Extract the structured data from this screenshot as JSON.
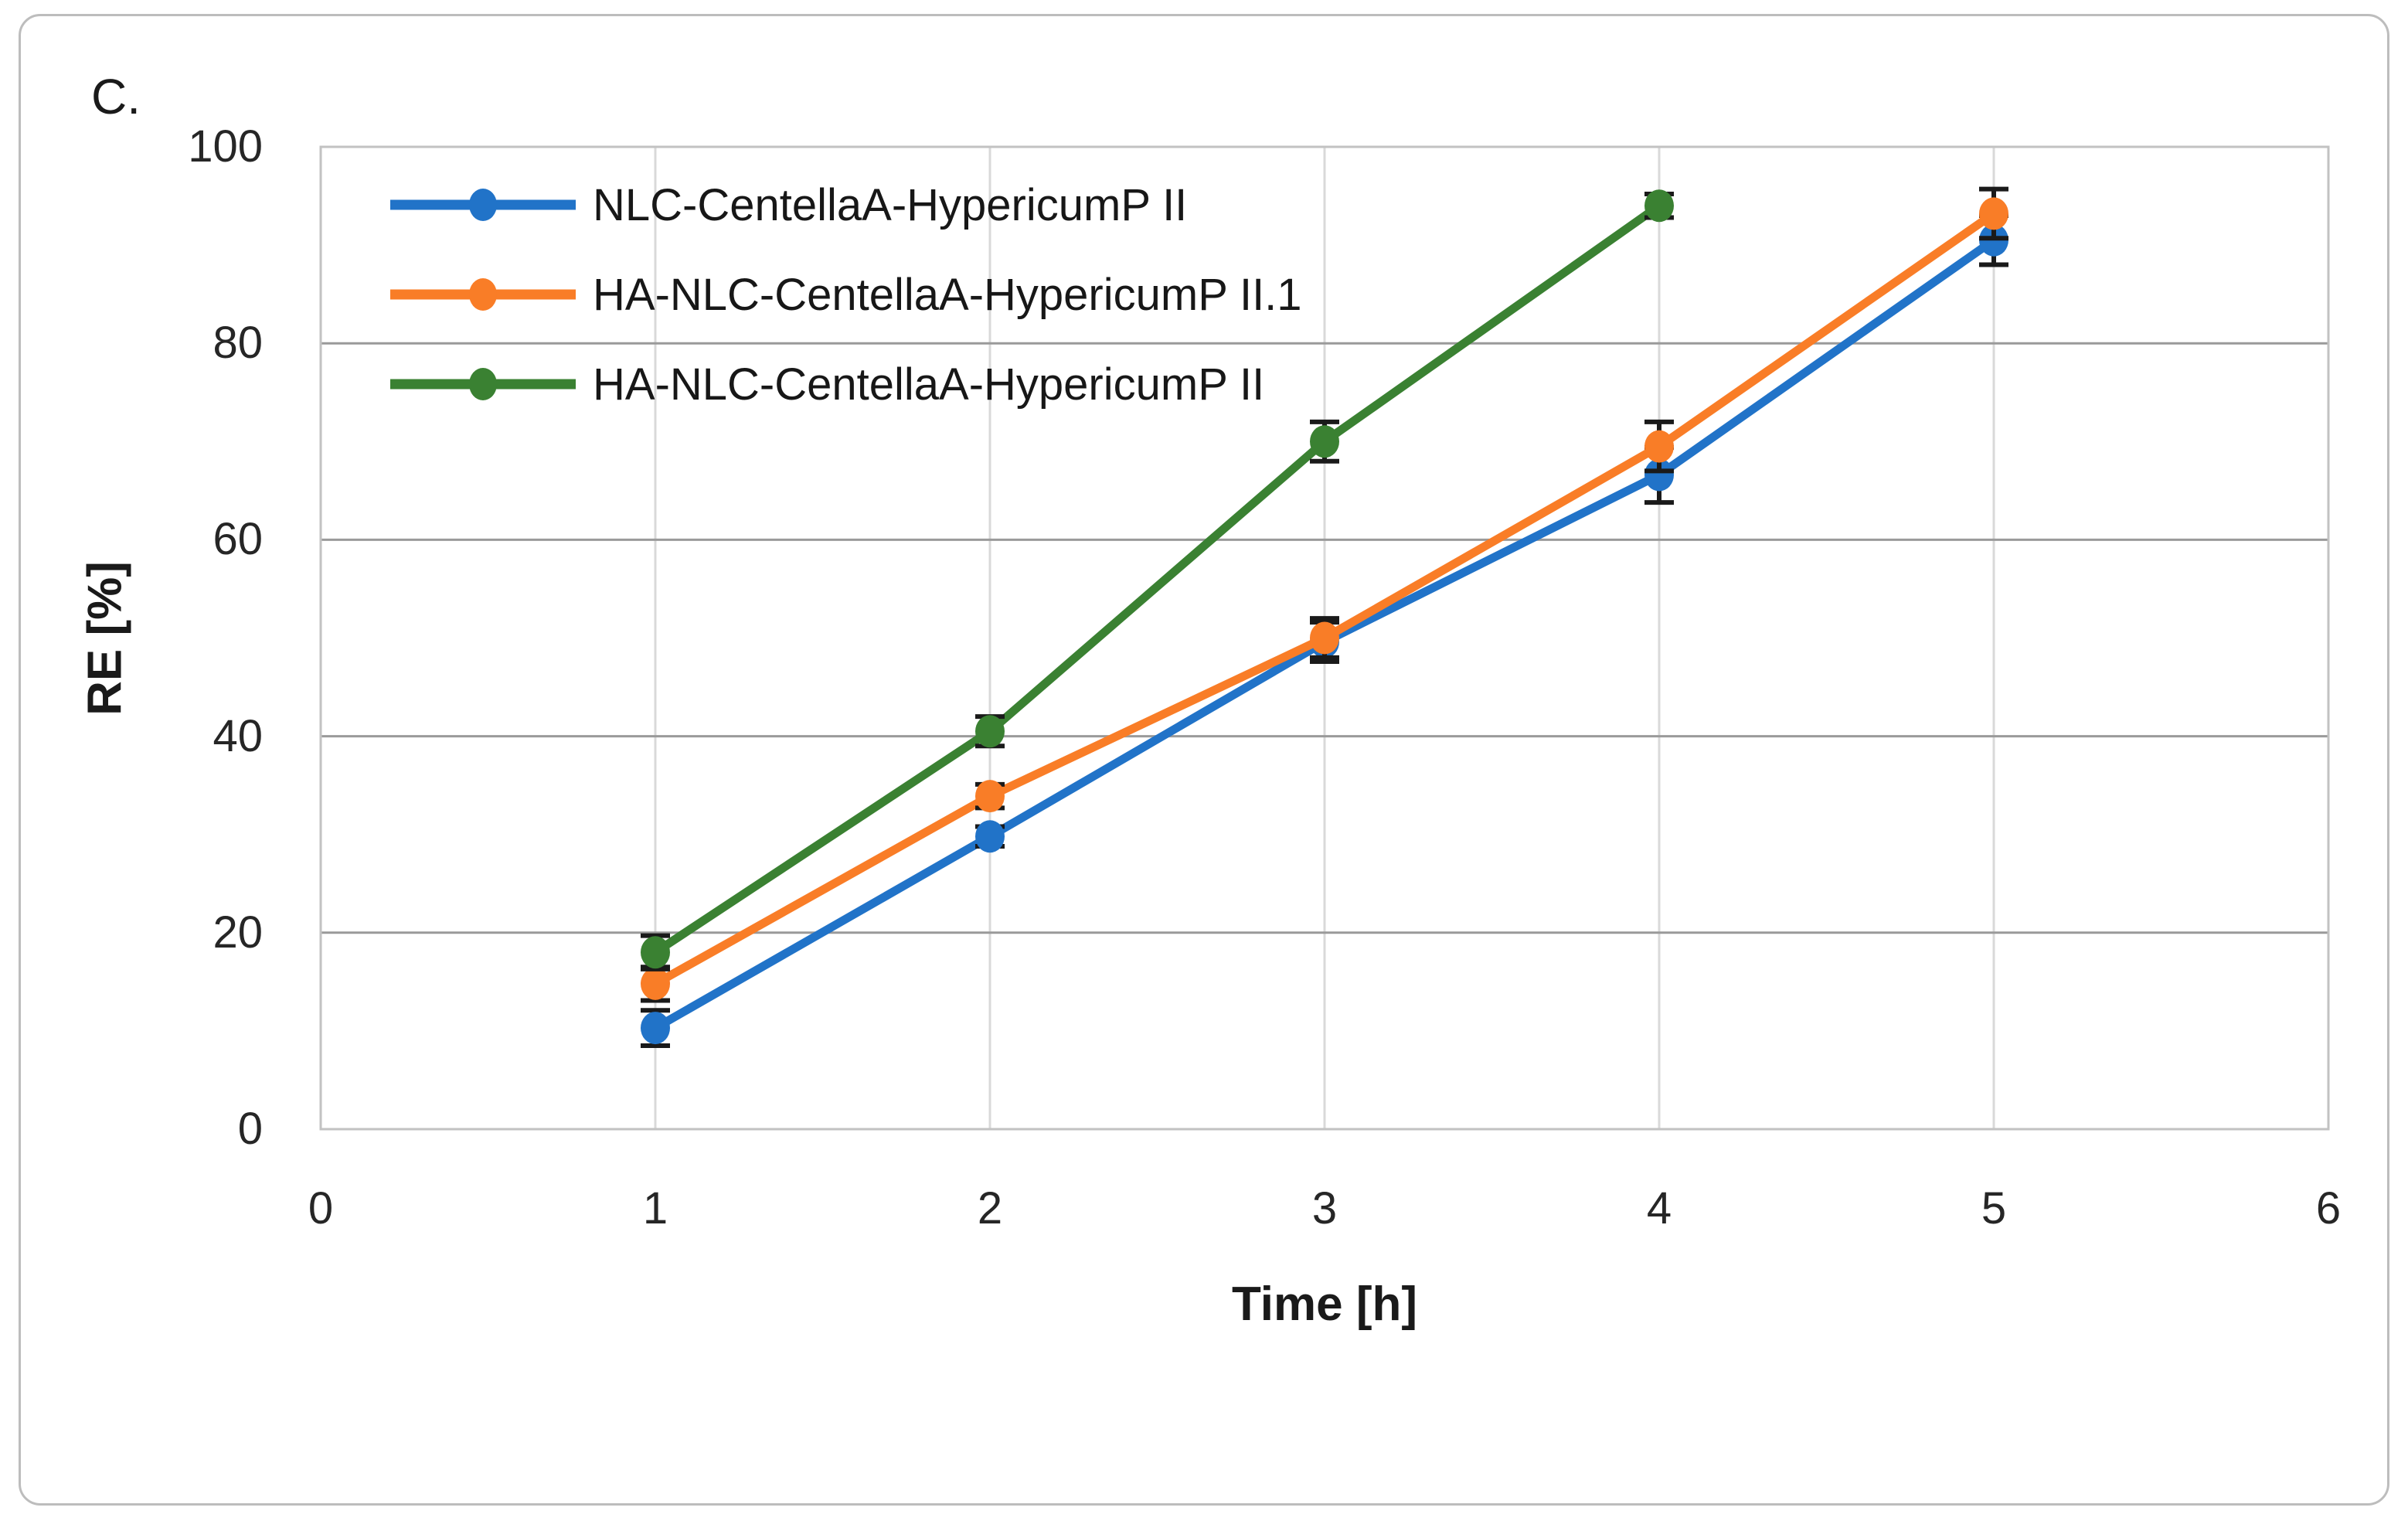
{
  "figure": {
    "panel_label": "C.",
    "background_color": "#ffffff",
    "frame_color": "#bdbdbd"
  },
  "chart_data": {
    "type": "line",
    "title": "",
    "xlabel": "Time [h]",
    "ylabel": "RE [%]",
    "xlim": [
      0,
      6
    ],
    "ylim": [
      0,
      100
    ],
    "x_ticks": [
      0,
      1,
      2,
      3,
      4,
      5,
      6
    ],
    "y_ticks": [
      0,
      20,
      40,
      60,
      80,
      100
    ],
    "grid": {
      "horizontal": true,
      "vertical": true
    },
    "grid_color_horizontal": "#9a9a9a",
    "grid_color_vertical": "#d9d9d9",
    "plot_border_color": "#c2c2c2",
    "error_bar_color": "#1a1a1a",
    "marker": "circle",
    "legend_position": "top-left-inside",
    "series": [
      {
        "name": "NLC-CentellaA-HypericumP II",
        "color": "#2173c8",
        "x": [
          1,
          2,
          3,
          4,
          5
        ],
        "values": [
          10.3,
          29.8,
          49.6,
          66.6,
          90.5
        ],
        "error": [
          1.8,
          1.0,
          2.0,
          2.8,
          2.5
        ]
      },
      {
        "name": "HA-NLC-CentellaA-HypericumP II.1",
        "color": "#f97d27",
        "x": [
          1,
          2,
          3,
          4,
          5
        ],
        "values": [
          14.8,
          33.9,
          50.0,
          69.5,
          93.2
        ],
        "error": [
          1.7,
          1.2,
          2.0,
          2.5,
          2.5
        ]
      },
      {
        "name": "HA-NLC-CentellaA-HypericumP II",
        "color": "#3a8132",
        "x": [
          1,
          2,
          3,
          4
        ],
        "values": [
          18.0,
          40.5,
          70.0,
          94.0
        ],
        "error": [
          1.7,
          1.5,
          2.0,
          1.2
        ]
      }
    ]
  }
}
